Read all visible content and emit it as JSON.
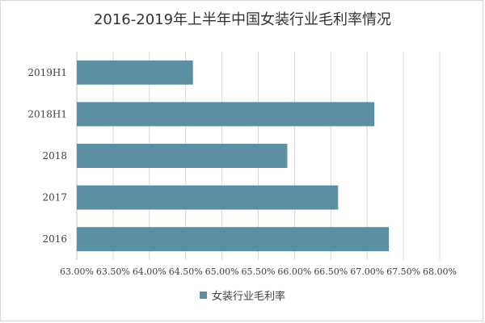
{
  "chart_data": {
    "type": "bar",
    "orientation": "horizontal",
    "title": "2016-2019年上半年中国女装行业毛利率情况",
    "categories": [
      "2019H1",
      "2018H1",
      "2018",
      "2017",
      "2016"
    ],
    "series": [
      {
        "name": "女装行业毛利率",
        "values": [
          64.6,
          67.1,
          65.9,
          66.6,
          67.3
        ],
        "color": "#5b8fa4"
      }
    ],
    "xlim": [
      63.0,
      68.0
    ],
    "x_ticks": [
      "63.00%",
      "63.50%",
      "64.00%",
      "64.50%",
      "65.00%",
      "65.50%",
      "66.00%",
      "66.50%",
      "67.00%",
      "67.50%",
      "68.00%"
    ],
    "grid": true,
    "legend_position": "bottom"
  }
}
